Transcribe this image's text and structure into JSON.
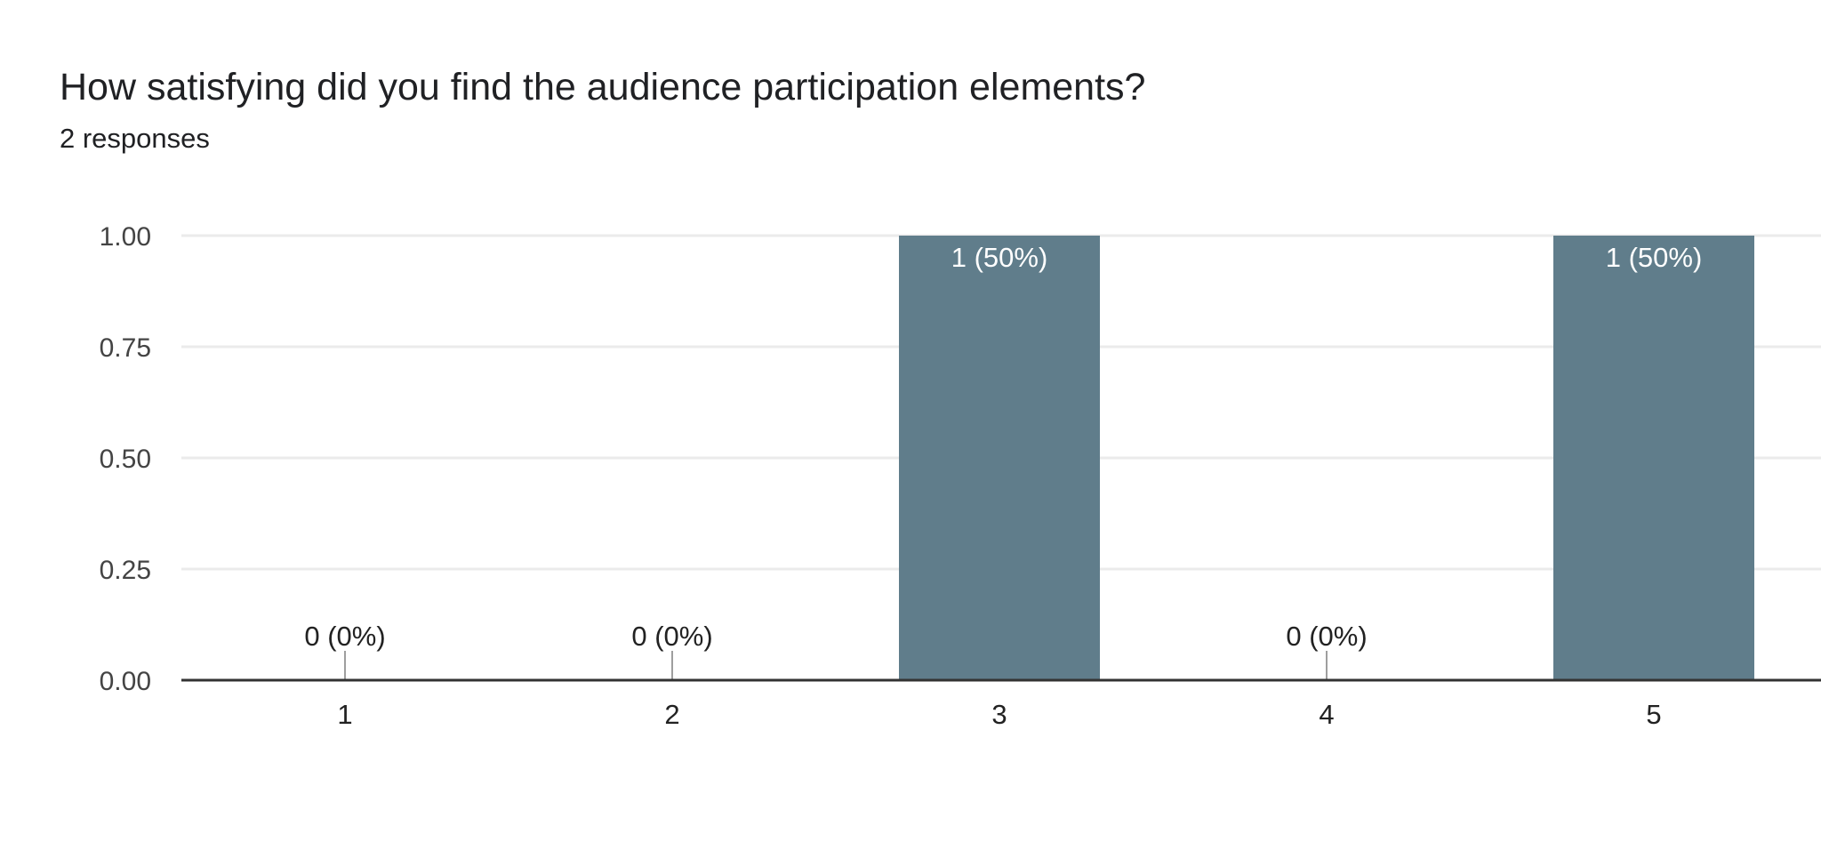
{
  "header": {
    "title": "How satisfying did you find the audience participation elements?",
    "subtitle": "2 responses"
  },
  "chart_data": {
    "type": "bar",
    "categories": [
      "1",
      "2",
      "3",
      "4",
      "5"
    ],
    "values": [
      0,
      0,
      1,
      0,
      1
    ],
    "data_labels": [
      "0 (0%)",
      "0 (0%)",
      "1 (50%)",
      "0 (0%)",
      "1 (50%)"
    ],
    "ylim": [
      0,
      1
    ],
    "yticks": [
      "0.00",
      "0.25",
      "0.50",
      "0.75",
      "1.00"
    ],
    "grid": true,
    "legend": "none",
    "colors": {
      "bar": "#607d8b",
      "label_inside": "#ffffff",
      "label_outside": "#222222",
      "axis": "#333333",
      "grid": "#ebebeb",
      "stub": "#9e9e9e"
    }
  }
}
